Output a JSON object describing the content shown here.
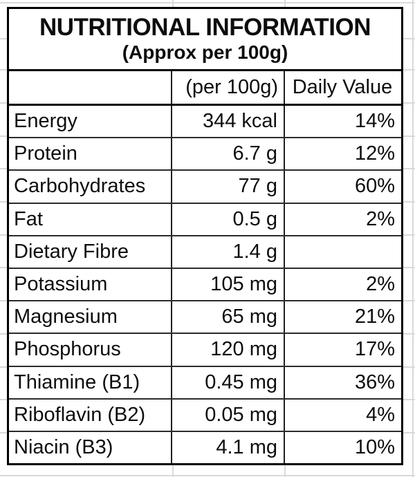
{
  "table": {
    "title_line1": "NUTRITIONAL INFORMATION",
    "title_line2": "(Approx per 100g)",
    "header": {
      "nutrient_label": "",
      "amount_label": "(per 100g)",
      "daily_value_label": "Daily Value"
    },
    "rows": [
      {
        "nutrient": "Energy",
        "amount": "344 kcal",
        "daily_value": "14%"
      },
      {
        "nutrient": "Protein",
        "amount": "6.7 g",
        "daily_value": "12%"
      },
      {
        "nutrient": "Carbohydrates",
        "amount": "77 g",
        "daily_value": "60%"
      },
      {
        "nutrient": "Fat",
        "amount": "0.5 g",
        "daily_value": "2%"
      },
      {
        "nutrient": "Dietary Fibre",
        "amount": "1.4 g",
        "daily_value": ""
      },
      {
        "nutrient": "Potassium",
        "amount": "105 mg",
        "daily_value": "2%"
      },
      {
        "nutrient": "Magnesium",
        "amount": "65 mg",
        "daily_value": "21%"
      },
      {
        "nutrient": "Phosphorus",
        "amount": "120 mg",
        "daily_value": "17%"
      },
      {
        "nutrient": "Thiamine (B1)",
        "amount": "0.45 mg",
        "daily_value": "36%"
      },
      {
        "nutrient": "Riboflavin (B2)",
        "amount": "0.05 mg",
        "daily_value": "4%"
      },
      {
        "nutrient": "Niacin (B3)",
        "amount": "4.1 mg",
        "daily_value": "10%"
      }
    ]
  },
  "colors": {
    "background": "#ffffff",
    "table_border": "#000000",
    "row_divider": "#2b2b2b",
    "text": "#0d0d0d",
    "spreadsheet_grid": "#d9d9d9"
  }
}
